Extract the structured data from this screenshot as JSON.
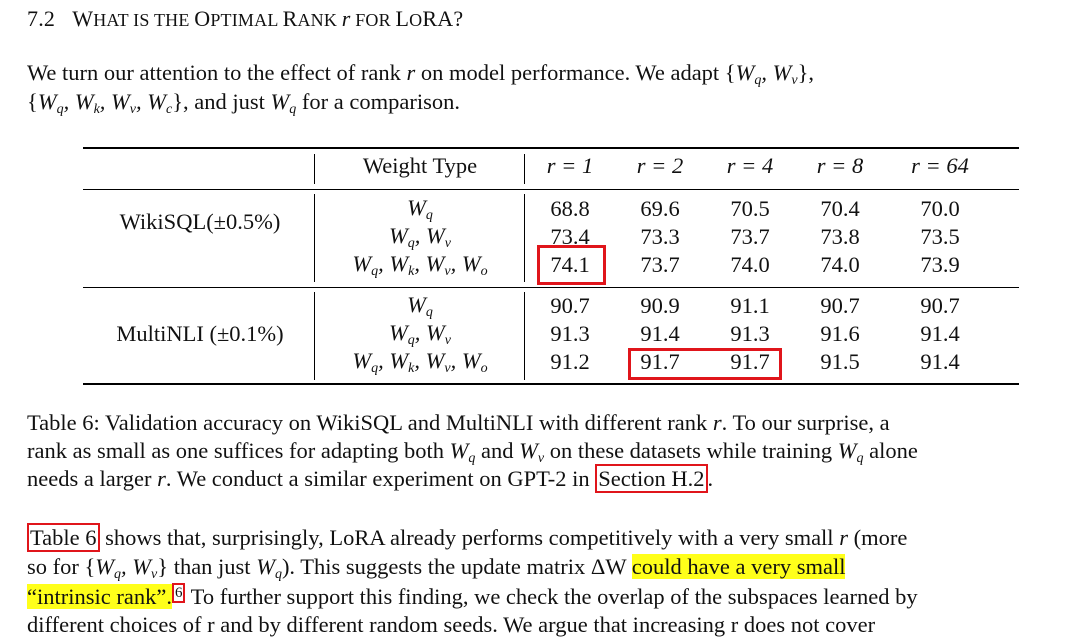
{
  "section": {
    "number": "7.2",
    "title_parts": [
      "W",
      "HAT IS THE ",
      "O",
      "PTIMAL ",
      "R",
      "ANK ",
      "r",
      " FOR ",
      "L",
      "O",
      "R",
      "A?"
    ]
  },
  "intro": {
    "line1_text": "We turn our attention to the effect of rank",
    "line1_r": "r",
    "line1_mid": "on model performance.  We adapt {",
    "line2_text_a": "{",
    "line2_text_b": "}, and just",
    "line2_text_c": "for a comparison."
  },
  "table": {
    "headers": [
      "Weight Type",
      "r = 1",
      "r = 2",
      "r = 4",
      "r = 8",
      "r = 64"
    ],
    "groups": [
      {
        "name": "WikiSQL(±0.5%)",
        "rows": [
          {
            "weights": "Wq",
            "values": [
              "68.8",
              "69.6",
              "70.5",
              "70.4",
              "70.0"
            ]
          },
          {
            "weights": "Wq, Wv",
            "values": [
              "73.4",
              "73.3",
              "73.7",
              "73.8",
              "73.5"
            ]
          },
          {
            "weights": "Wq, Wk, Wv, Wo",
            "values": [
              "74.1",
              "73.7",
              "74.0",
              "74.0",
              "73.9"
            ]
          }
        ]
      },
      {
        "name": "MultiNLI (±0.1%)",
        "rows": [
          {
            "weights": "Wq",
            "values": [
              "90.7",
              "90.9",
              "91.1",
              "90.7",
              "90.7"
            ]
          },
          {
            "weights": "Wq, Wv",
            "values": [
              "91.3",
              "91.4",
              "91.3",
              "91.6",
              "91.4"
            ]
          },
          {
            "weights": "Wq, Wk, Wv, Wo",
            "values": [
              "91.2",
              "91.7",
              "91.7",
              "91.5",
              "91.4"
            ]
          }
        ]
      }
    ],
    "highlight_color": "#e0151b"
  },
  "caption": {
    "line1": "Table 6: Validation accuracy on WikiSQL and MultiNLI with different rank",
    "line1_end": ". To our surprise, a",
    "line2_a": "rank as small as one suffices for adapting both",
    "line2_b": "and",
    "line2_c": "on these datasets while training",
    "line2_d": "alone",
    "line3_a": "needs a larger",
    "line3_b": ". We conduct a similar experiment on GPT-2 in",
    "line3_link": "Section H.2",
    "line3_end": "."
  },
  "body": {
    "link_table": "Table 6",
    "line1_a": "shows that, surprisingly, LoRA already performs competitively with a very small",
    "line1_b": "(more",
    "line2_a": "so for {",
    "line2_b": "} than just",
    "line2_c": ").  This suggests the update matrix ΔW",
    "line2_hl": "could have a very small",
    "line3_hl": "“intrinsic rank”.",
    "footnote": "6",
    "line3_b": "To further support this finding, we check the overlap of the subspaces learned by",
    "line4": "different choices of r and by different random seeds. We argue that increasing r does not cover",
    "highlight_color": "#ffff1a"
  }
}
